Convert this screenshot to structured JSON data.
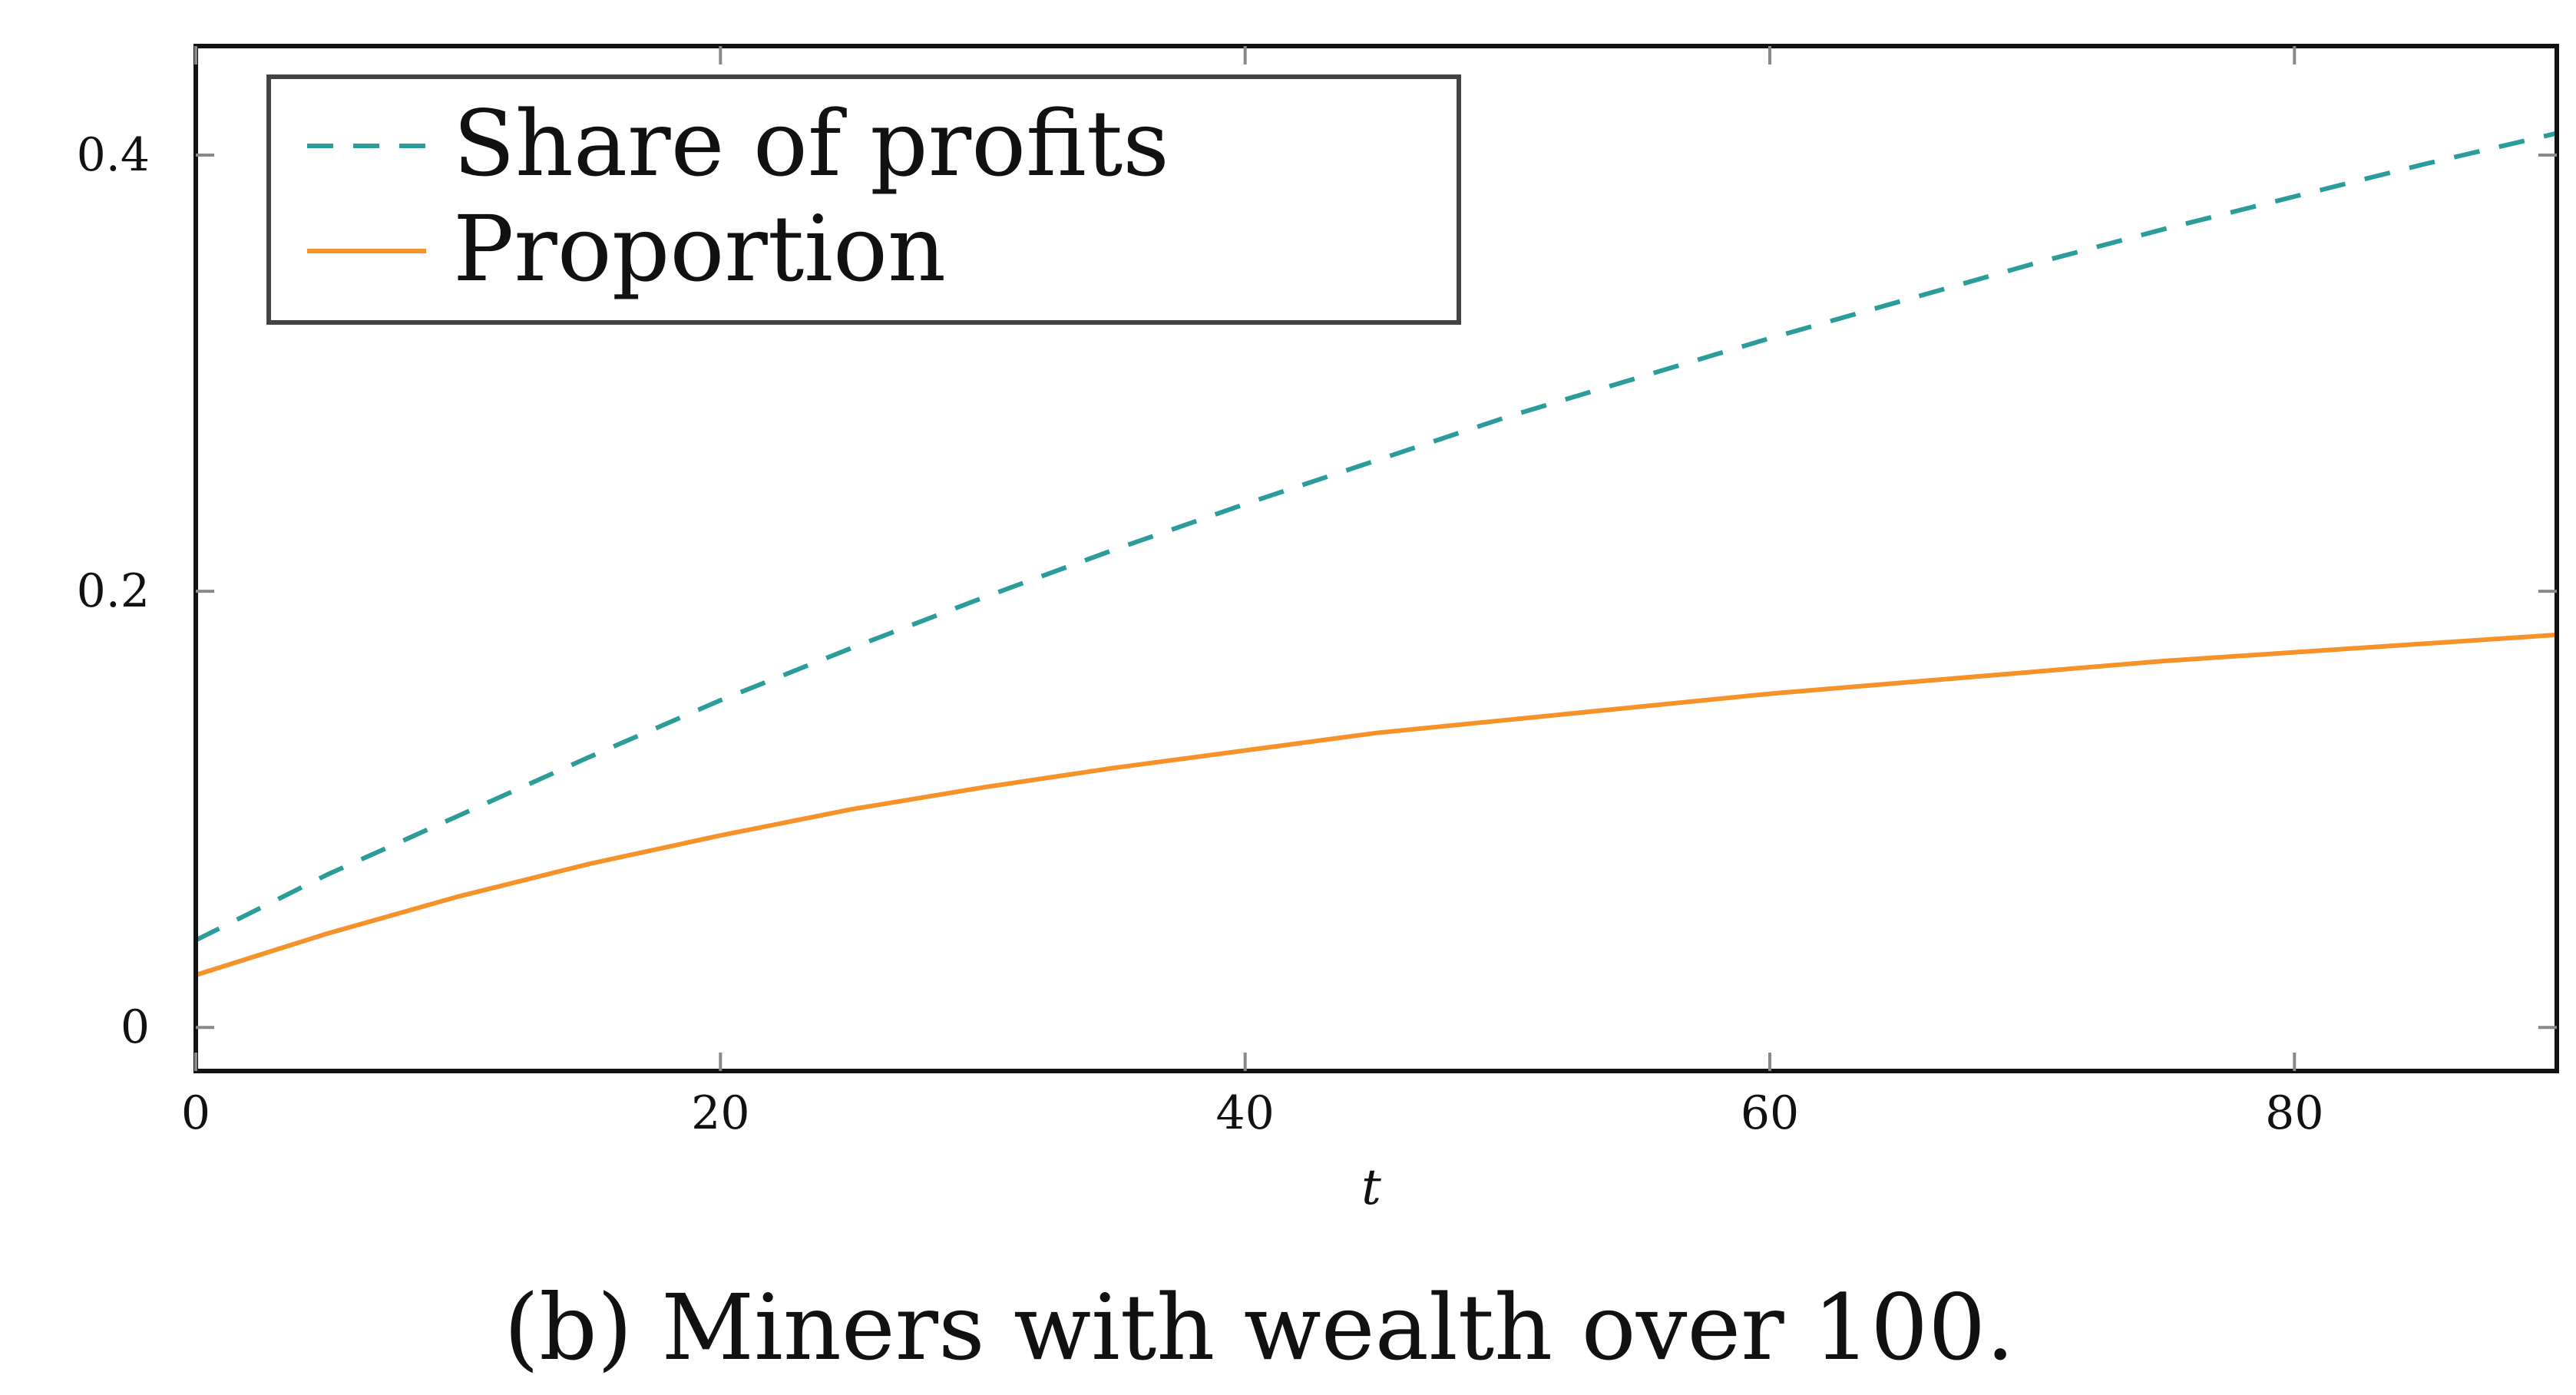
{
  "colors": {
    "share_of_profits": "#2a9d9a",
    "proportion": "#f5922a",
    "axis": "#111111",
    "grid_tick": "#888888",
    "legend_border": "#444444"
  },
  "caption": "(b) Miners with wealth over 100.",
  "chart_data": {
    "type": "line",
    "title": "",
    "xlabel": "t",
    "ylabel": "",
    "xlim": [
      0,
      90
    ],
    "ylim": [
      -0.02,
      0.45
    ],
    "xticks": [
      0,
      20,
      40,
      60,
      80
    ],
    "xtick_labels": [
      "0",
      "20",
      "40",
      "60",
      "80"
    ],
    "yticks": [
      0,
      0.2,
      0.4
    ],
    "ytick_labels": [
      "0",
      "0.2",
      "0.4"
    ],
    "grid": false,
    "legend": {
      "placement": "top-left",
      "entries": [
        {
          "label": "Share of profits",
          "style": "dashed"
        },
        {
          "label": "Proportion",
          "style": "solid"
        }
      ]
    },
    "series": [
      {
        "name": "Share of profits",
        "style": "dashed",
        "x": [
          0,
          5,
          10,
          15,
          20,
          25,
          30,
          35,
          40,
          45,
          50,
          55,
          60,
          65,
          70,
          75,
          80,
          85,
          90
        ],
        "y": [
          0.04,
          0.07,
          0.097,
          0.124,
          0.15,
          0.174,
          0.197,
          0.219,
          0.24,
          0.26,
          0.28,
          0.298,
          0.316,
          0.333,
          0.35,
          0.366,
          0.381,
          0.396,
          0.41
        ]
      },
      {
        "name": "Proportion",
        "style": "solid",
        "x": [
          0,
          5,
          10,
          15,
          20,
          25,
          30,
          35,
          40,
          45,
          50,
          55,
          60,
          65,
          70,
          75,
          80,
          85,
          90
        ],
        "y": [
          0.024,
          0.043,
          0.06,
          0.075,
          0.088,
          0.1,
          0.11,
          0.119,
          0.127,
          0.135,
          0.141,
          0.147,
          0.153,
          0.158,
          0.163,
          0.168,
          0.172,
          0.176,
          0.18
        ]
      }
    ]
  }
}
